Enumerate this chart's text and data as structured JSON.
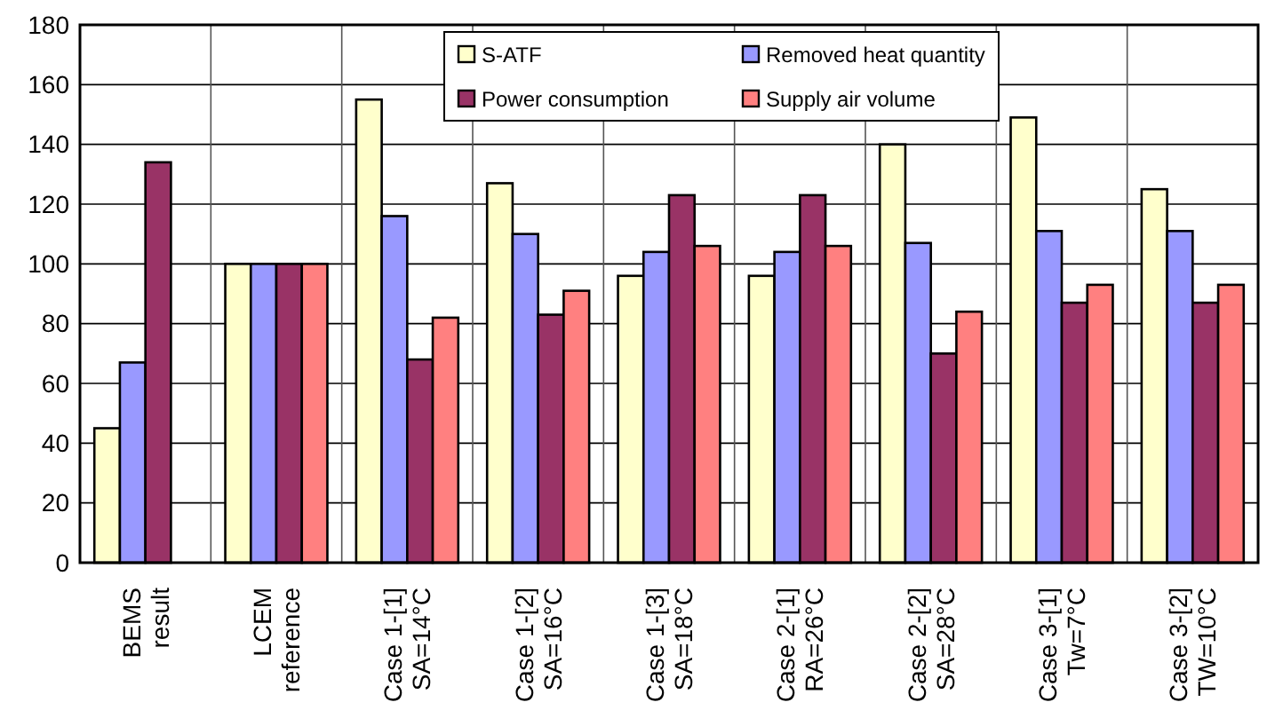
{
  "chart_data": {
    "type": "bar",
    "categories": [
      "BEMS\nresult",
      "LCEM\nreference",
      "Case 1-[1]\nSA=14°C",
      "Case 1-[2]\nSA=16°C",
      "Case 1-[3]\nSA=18°C",
      "Case 2-[1]\nRA=26°C",
      "Case 2-[2]\nSA=28°C",
      "Case 3-[1]\nTw=7°C",
      "Case 3-[2]\nTW=10°C"
    ],
    "series": [
      {
        "name": "S-ATF",
        "color": "#ffffcc",
        "values": [
          45,
          100,
          155,
          127,
          96,
          96,
          140,
          149,
          125
        ]
      },
      {
        "name": "Removed heat quantity",
        "color": "#9999ff",
        "values": [
          67,
          100,
          116,
          110,
          104,
          104,
          107,
          111,
          111
        ]
      },
      {
        "name": "Power consumption",
        "color": "#993366",
        "values": [
          134,
          100,
          68,
          83,
          123,
          123,
          70,
          87,
          87
        ]
      },
      {
        "name": "Supply air volume",
        "color": "#ff8080",
        "values": [
          null,
          100,
          82,
          91,
          106,
          106,
          84,
          93,
          93
        ]
      }
    ],
    "ylim": [
      0,
      180
    ],
    "yticks": [
      0,
      20,
      40,
      60,
      80,
      100,
      120,
      140,
      160,
      180
    ],
    "grid": true,
    "legend": "top right"
  }
}
